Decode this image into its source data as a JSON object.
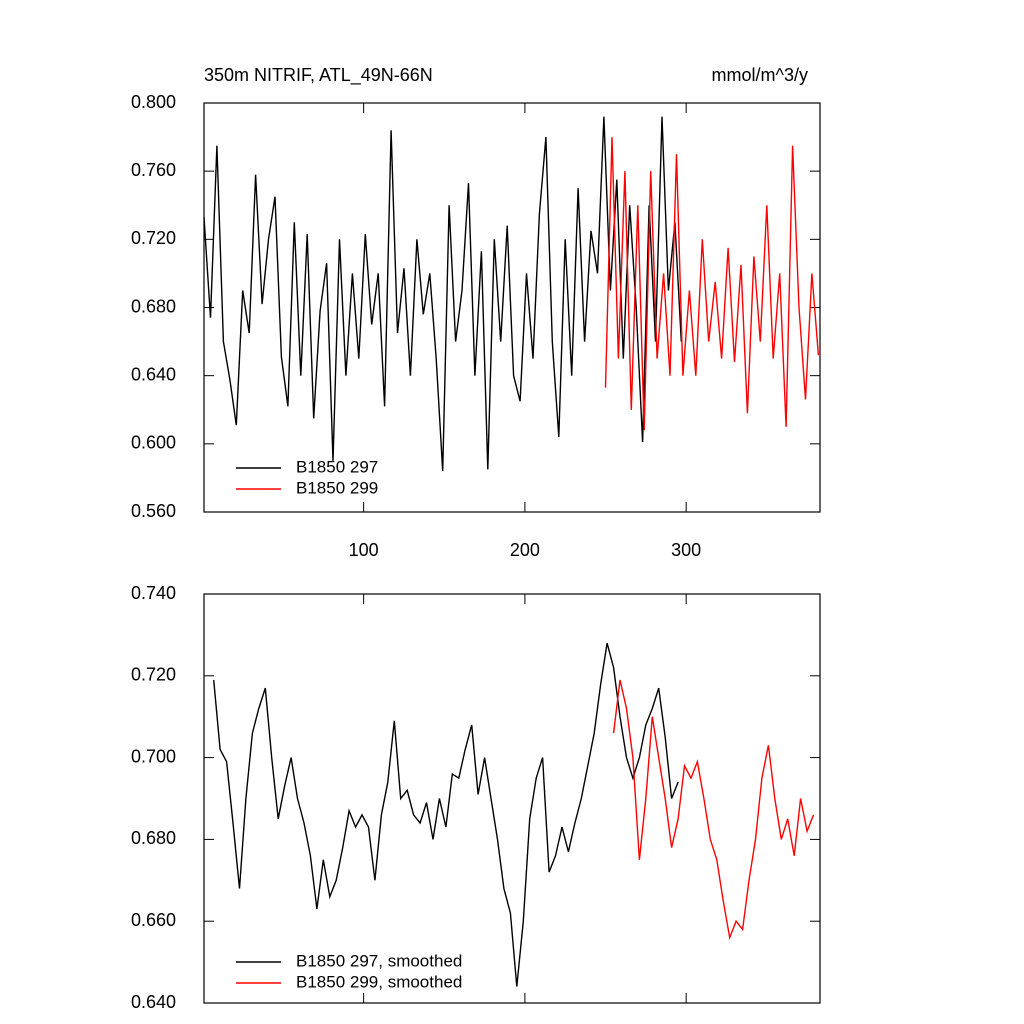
{
  "chart_data": [
    {
      "type": "line",
      "title": "350m NITRIF, ATL_49N-66N",
      "subtitle": "mmol/m^3/y",
      "xlim": [
        1,
        383
      ],
      "xticks": [
        100,
        200,
        300
      ],
      "ylim": [
        0.56,
        0.8
      ],
      "yticks": [
        {
          "value": 0.56,
          "label": "0.560"
        },
        {
          "value": 0.6,
          "label": "0.600"
        },
        {
          "value": 0.64,
          "label": "0.640"
        },
        {
          "value": 0.68,
          "label": "0.680"
        },
        {
          "value": 0.72,
          "label": "0.720"
        },
        {
          "value": 0.76,
          "label": "0.760"
        },
        {
          "value": 0.8,
          "label": "0.800"
        }
      ],
      "series": [
        {
          "name": "B1850 297",
          "color": "#000000",
          "x": [
            1,
            5,
            9,
            13,
            17,
            21,
            25,
            29,
            33,
            37,
            41,
            45,
            49,
            53,
            57,
            61,
            65,
            69,
            73,
            77,
            81,
            85,
            89,
            93,
            97,
            101,
            105,
            109,
            113,
            117,
            121,
            125,
            129,
            133,
            137,
            141,
            145,
            149,
            153,
            157,
            161,
            165,
            169,
            173,
            177,
            181,
            185,
            189,
            193,
            197,
            201,
            205,
            209,
            213,
            217,
            221,
            225,
            229,
            233,
            237,
            241,
            245,
            249,
            253,
            257,
            261,
            265,
            269,
            273,
            277,
            281,
            285,
            289,
            293,
            297
          ],
          "values": [
            0.733,
            0.674,
            0.775,
            0.66,
            0.638,
            0.611,
            0.69,
            0.665,
            0.758,
            0.682,
            0.72,
            0.745,
            0.651,
            0.622,
            0.73,
            0.64,
            0.723,
            0.615,
            0.678,
            0.706,
            0.59,
            0.72,
            0.64,
            0.7,
            0.65,
            0.723,
            0.67,
            0.7,
            0.622,
            0.784,
            0.665,
            0.703,
            0.64,
            0.72,
            0.676,
            0.7,
            0.65,
            0.584,
            0.74,
            0.66,
            0.69,
            0.753,
            0.64,
            0.713,
            0.585,
            0.72,
            0.66,
            0.728,
            0.64,
            0.625,
            0.7,
            0.65,
            0.735,
            0.78,
            0.66,
            0.604,
            0.72,
            0.64,
            0.75,
            0.66,
            0.725,
            0.7,
            0.792,
            0.69,
            0.755,
            0.65,
            0.74,
            0.68,
            0.601,
            0.74,
            0.66,
            0.792,
            0.69,
            0.73,
            0.66
          ]
        },
        {
          "name": "B1850 299",
          "color": "#ff0000",
          "x": [
            250,
            254,
            258,
            262,
            266,
            270,
            274,
            278,
            282,
            286,
            290,
            294,
            298,
            302,
            306,
            310,
            314,
            318,
            322,
            326,
            330,
            334,
            338,
            342,
            346,
            350,
            354,
            358,
            362,
            366,
            370,
            374,
            378,
            382
          ],
          "values": [
            0.633,
            0.78,
            0.65,
            0.76,
            0.62,
            0.74,
            0.608,
            0.76,
            0.65,
            0.7,
            0.64,
            0.77,
            0.64,
            0.69,
            0.64,
            0.72,
            0.66,
            0.695,
            0.65,
            0.715,
            0.648,
            0.705,
            0.618,
            0.71,
            0.66,
            0.74,
            0.65,
            0.7,
            0.61,
            0.775,
            0.68,
            0.626,
            0.7,
            0.652
          ]
        }
      ]
    },
    {
      "type": "line",
      "xlim": [
        1,
        383
      ],
      "xticks": [
        100,
        200,
        300
      ],
      "ylim": [
        0.64,
        0.74
      ],
      "yticks": [
        {
          "value": 0.64,
          "label": "0.640"
        },
        {
          "value": 0.66,
          "label": "0.660"
        },
        {
          "value": 0.68,
          "label": "0.680"
        },
        {
          "value": 0.7,
          "label": "0.700"
        },
        {
          "value": 0.72,
          "label": "0.720"
        },
        {
          "value": 0.74,
          "label": "0.740"
        }
      ],
      "series": [
        {
          "name": "B1850 297, smoothed",
          "color": "#000000",
          "x": [
            7,
            11,
            15,
            19,
            23,
            27,
            31,
            35,
            39,
            43,
            47,
            51,
            55,
            59,
            63,
            67,
            71,
            75,
            79,
            83,
            87,
            91,
            95,
            99,
            103,
            107,
            111,
            115,
            119,
            123,
            127,
            131,
            135,
            139,
            143,
            147,
            151,
            155,
            159,
            163,
            167,
            171,
            175,
            179,
            183,
            187,
            191,
            195,
            199,
            203,
            207,
            211,
            215,
            219,
            223,
            227,
            231,
            235,
            239,
            243,
            247,
            251,
            255,
            259,
            263,
            267,
            271,
            275,
            279,
            283,
            287,
            291,
            295
          ],
          "values": [
            0.719,
            0.702,
            0.699,
            0.684,
            0.668,
            0.69,
            0.706,
            0.712,
            0.717,
            0.7,
            0.685,
            0.693,
            0.7,
            0.69,
            0.684,
            0.676,
            0.663,
            0.675,
            0.666,
            0.67,
            0.678,
            0.687,
            0.683,
            0.686,
            0.683,
            0.67,
            0.686,
            0.694,
            0.709,
            0.69,
            0.692,
            0.686,
            0.684,
            0.689,
            0.68,
            0.69,
            0.683,
            0.696,
            0.695,
            0.702,
            0.708,
            0.691,
            0.7,
            0.69,
            0.68,
            0.668,
            0.662,
            0.644,
            0.66,
            0.685,
            0.695,
            0.7,
            0.672,
            0.676,
            0.683,
            0.677,
            0.684,
            0.69,
            0.698,
            0.706,
            0.718,
            0.728,
            0.722,
            0.71,
            0.7,
            0.695,
            0.7,
            0.708,
            0.712,
            0.717,
            0.705,
            0.69,
            0.694
          ]
        },
        {
          "name": "B1850 299, smoothed",
          "color": "#ff0000",
          "x": [
            255,
            259,
            263,
            267,
            271,
            275,
            279,
            283,
            287,
            291,
            295,
            299,
            303,
            307,
            311,
            315,
            319,
            323,
            327,
            331,
            335,
            339,
            343,
            347,
            351,
            355,
            359,
            363,
            367,
            371,
            375,
            379
          ],
          "values": [
            0.706,
            0.719,
            0.712,
            0.7,
            0.675,
            0.69,
            0.71,
            0.7,
            0.69,
            0.678,
            0.685,
            0.698,
            0.695,
            0.699,
            0.69,
            0.68,
            0.675,
            0.665,
            0.656,
            0.66,
            0.658,
            0.67,
            0.68,
            0.695,
            0.703,
            0.69,
            0.68,
            0.685,
            0.676,
            0.69,
            0.682,
            0.686
          ]
        }
      ]
    }
  ]
}
